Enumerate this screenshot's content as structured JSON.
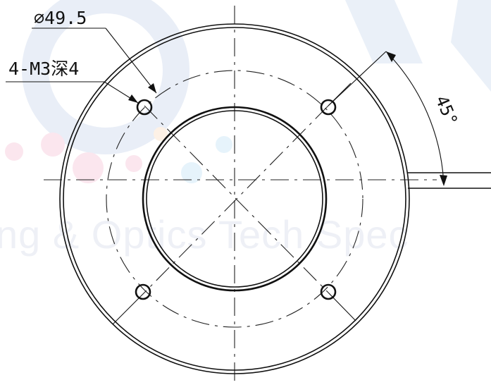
{
  "drawing": {
    "pcd_label": "∅49.5",
    "hole_label": "4-M3深4",
    "angle_label": "45°",
    "hole_count": 4,
    "hole_angle_deg": 45,
    "watermark": {
      "text": "ng & Optics Tech Spec",
      "color": "#eef0f6",
      "dot_colors": [
        "#fbe6ee",
        "#e6f3fb",
        "#fdf1e6",
        "#e9f0fb"
      ]
    },
    "line_color": "#111111"
  }
}
